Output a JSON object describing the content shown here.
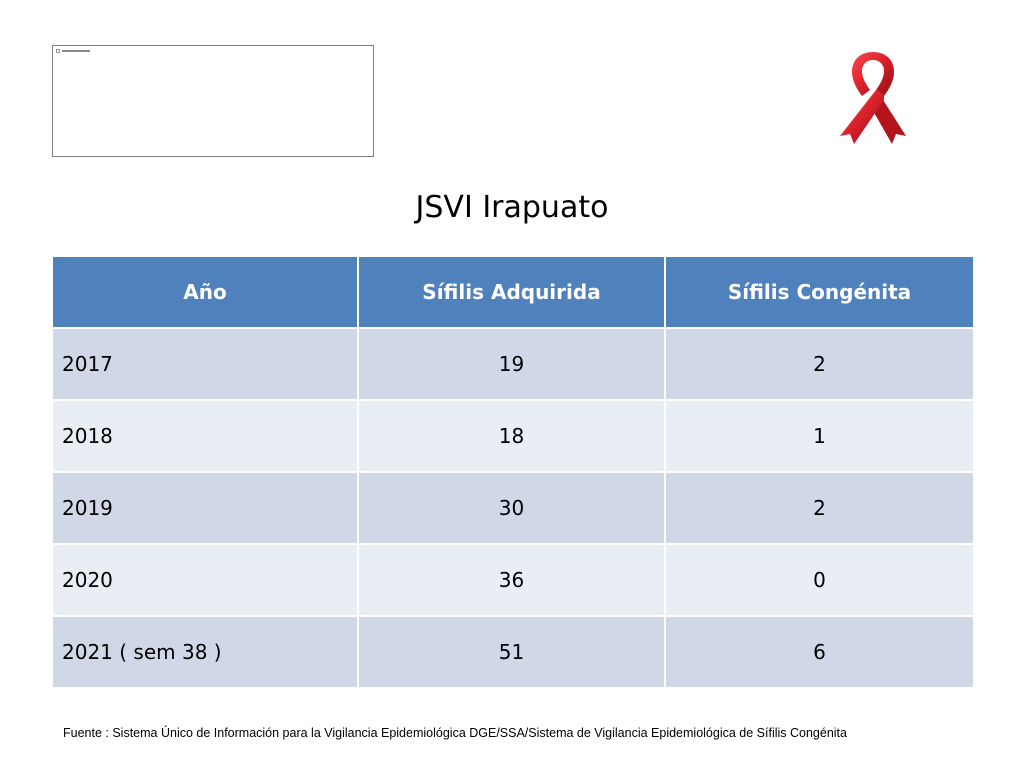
{
  "title": "JSVI Irapuato",
  "ribbon_icon": "red-awareness-ribbon",
  "colors": {
    "header_bg": "#4f81bd",
    "row_dark": "#d0d8e8",
    "row_light": "#e9edf4",
    "ribbon_red": "#d8202a"
  },
  "table": {
    "headers": [
      "Año",
      "Sífilis Adquirida",
      "Sífilis Congénita"
    ],
    "rows": [
      [
        "2017",
        "19",
        "2"
      ],
      [
        "2018",
        "18",
        "1"
      ],
      [
        "2019",
        "30",
        "2"
      ],
      [
        "2020",
        "36",
        "0"
      ],
      [
        "2021 ( sem 38 )",
        "51",
        "6"
      ]
    ]
  },
  "source": "Fuente : Sistema Único de Información para la Vigilancia Epidemiológica DGE/SSA/Sistema de Vigilancia Epidemiológica de Sífilis Congénita"
}
